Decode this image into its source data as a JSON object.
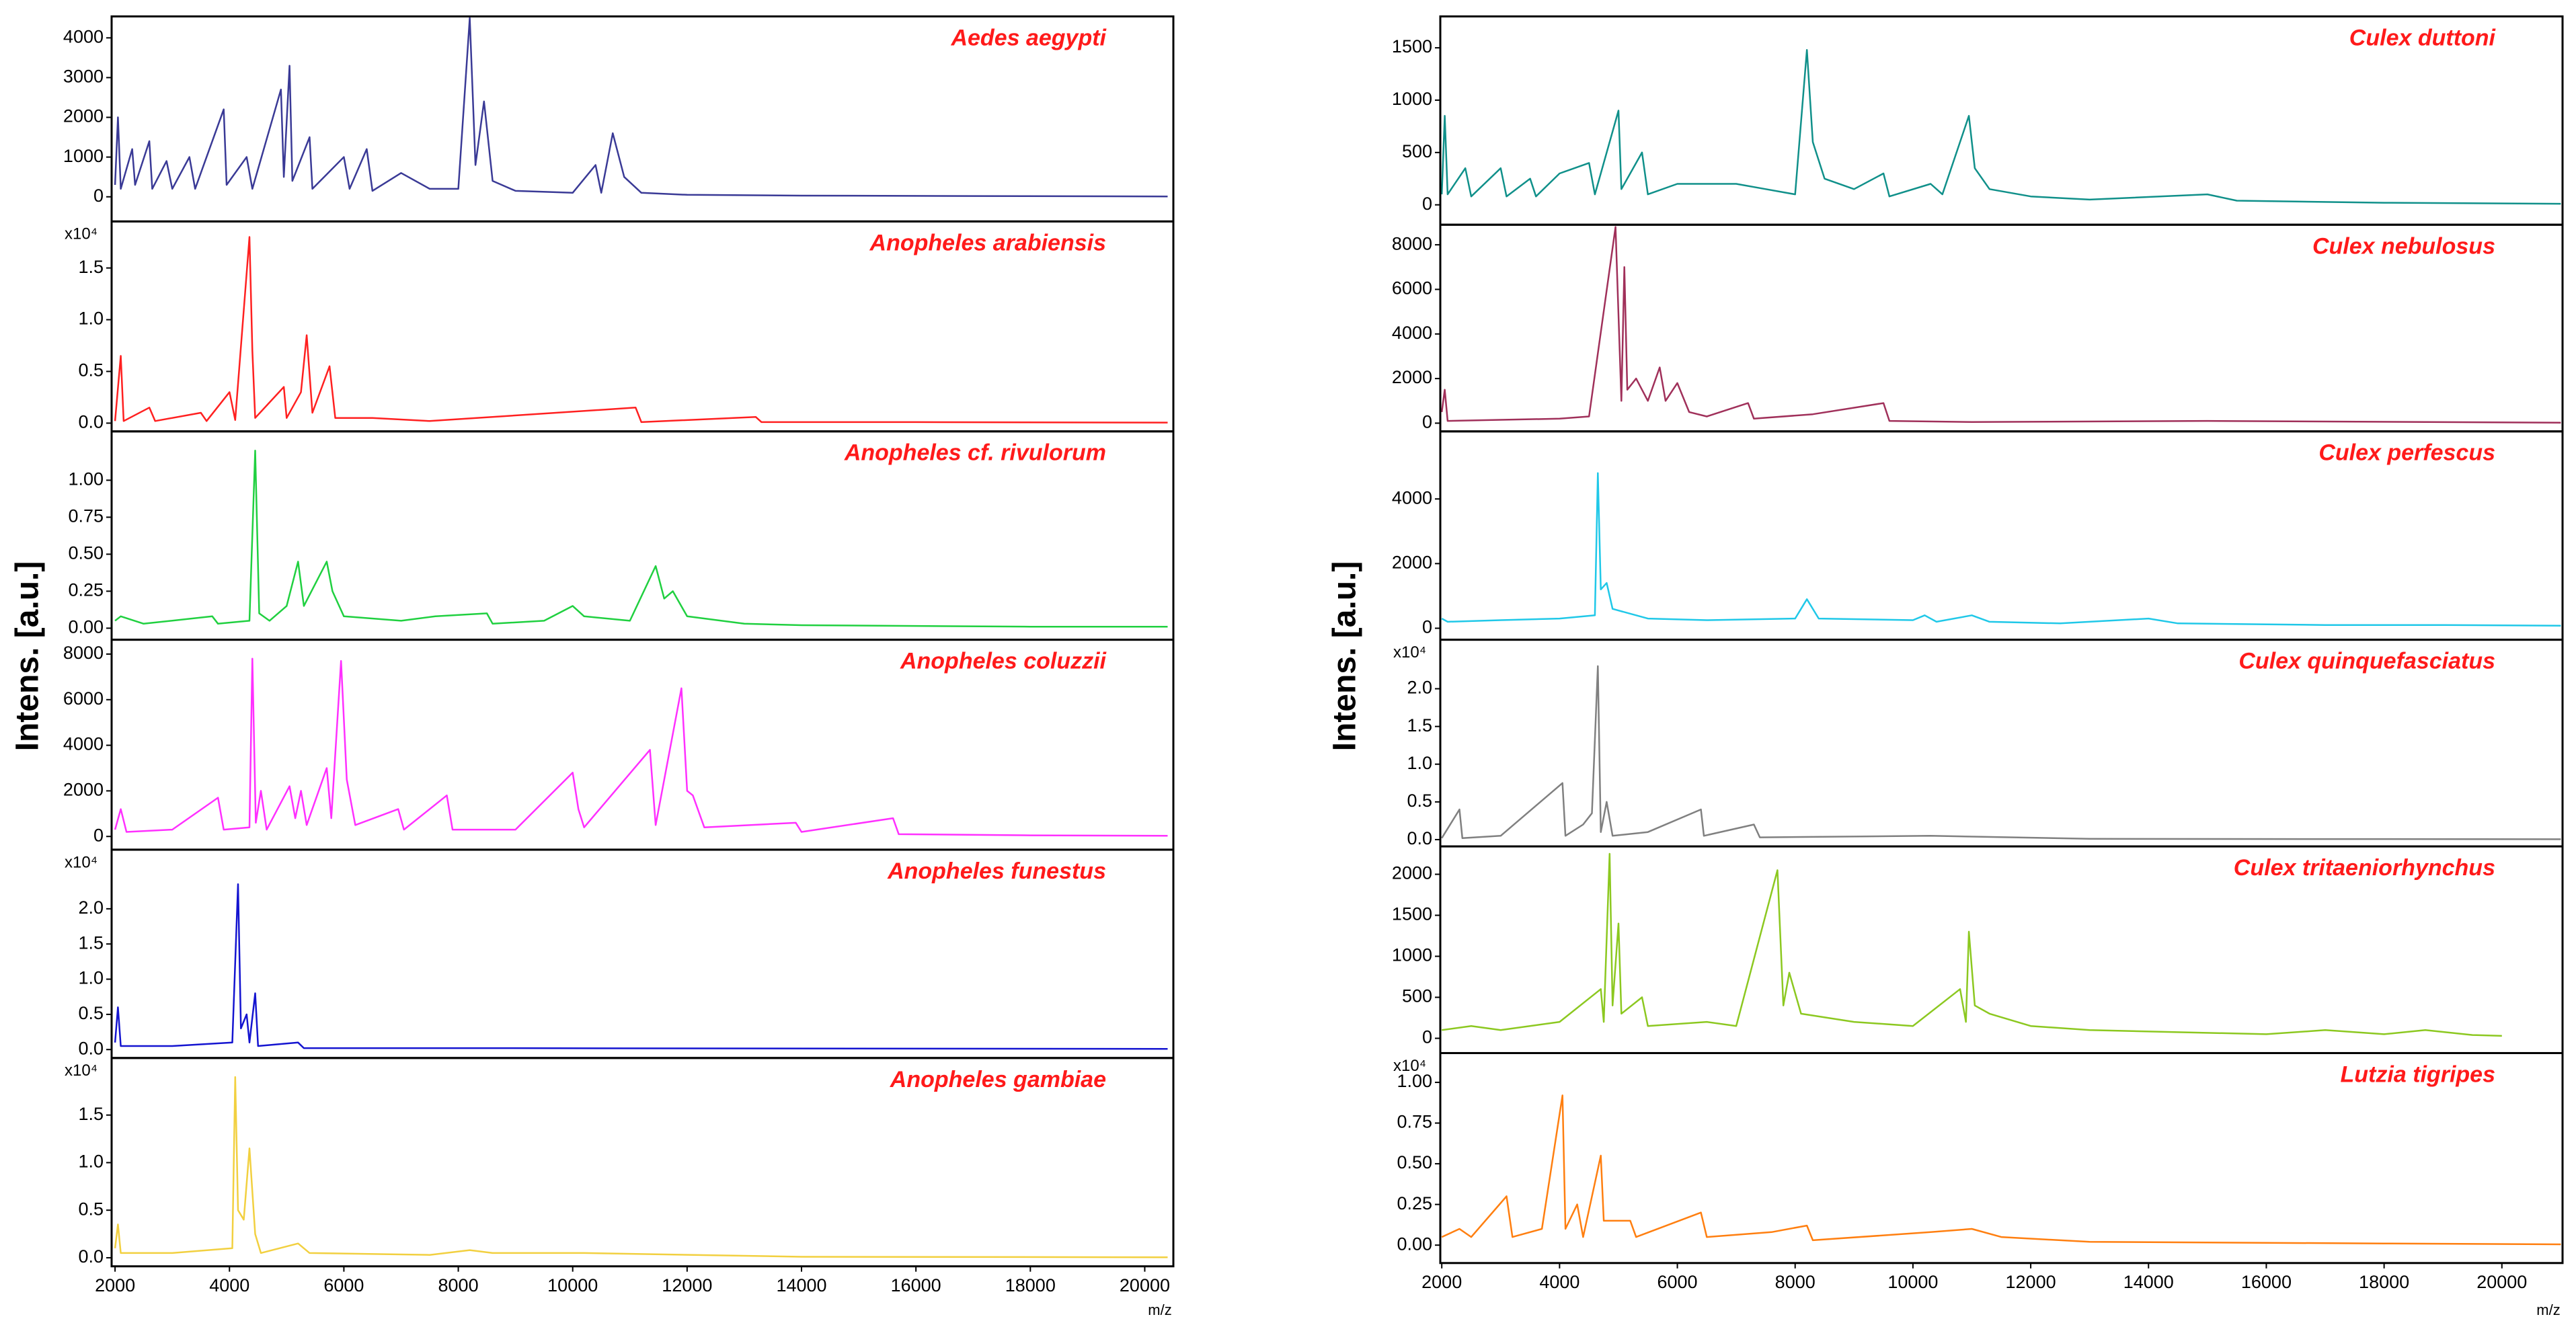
{
  "axis_labels": {
    "y": "Intens. [a.u.]",
    "x": "m/z"
  },
  "chart_data": [
    {
      "type": "line",
      "title": "Aedes aegypti",
      "xlim": [
        1940,
        20500
      ],
      "ylim": [
        -620,
        4540
      ],
      "yticks": [
        0,
        1000,
        2000,
        3000,
        4000
      ],
      "x": [
        2000,
        2050,
        2100,
        2300,
        2350,
        2600,
        2650,
        2900,
        3000,
        3300,
        3400,
        3900,
        3950,
        4300,
        4400,
        4900,
        4950,
        5050,
        5100,
        5400,
        5450,
        6000,
        6100,
        6400,
        6500,
        7000,
        7500,
        8000,
        8200,
        8300,
        8450,
        8600,
        9000,
        10000,
        10400,
        10500,
        10700,
        10900,
        11200,
        12000,
        14000,
        17000,
        20400
      ],
      "series": [
        {
          "color": "#3a3a96",
          "values": [
            300,
            2000,
            200,
            1200,
            300,
            1400,
            200,
            900,
            200,
            1000,
            200,
            2200,
            300,
            1000,
            200,
            2700,
            500,
            3300,
            400,
            1500,
            200,
            1000,
            200,
            1200,
            150,
            600,
            200,
            200,
            4500,
            800,
            2400,
            400,
            150,
            100,
            800,
            100,
            1600,
            500,
            100,
            50,
            30,
            20,
            10
          ]
        }
      ]
    },
    {
      "type": "line",
      "title": "Anopheles arabiensis",
      "y_multiplier": "x10⁴",
      "xlim": [
        1940,
        20500
      ],
      "ylim": [
        -0.08,
        1.95
      ],
      "yticks": [
        {
          "value": 0,
          "label": "0.0"
        },
        0.5,
        {
          "value": 1,
          "label": "1.0"
        },
        1.5
      ],
      "x": [
        2000,
        2100,
        2150,
        2600,
        2700,
        3500,
        3600,
        4000,
        4100,
        4350,
        4400,
        4450,
        4950,
        5000,
        5250,
        5350,
        5450,
        5750,
        5850,
        6500,
        7500,
        11100,
        11200,
        13200,
        13300,
        16000,
        20400
      ],
      "series": [
        {
          "color": "#ff2020",
          "values": [
            0.02,
            0.65,
            0.02,
            0.15,
            0.02,
            0.1,
            0.02,
            0.3,
            0.03,
            1.8,
            0.7,
            0.05,
            0.35,
            0.05,
            0.3,
            0.85,
            0.1,
            0.55,
            0.05,
            0.05,
            0.02,
            0.15,
            0.01,
            0.06,
            0.01,
            0.01,
            0.005
          ]
        }
      ]
    },
    {
      "type": "line",
      "title": "Anopheles cf. rivulorum",
      "xlim": [
        1940,
        20500
      ],
      "ylim": [
        -0.078,
        1.33
      ],
      "yticks": [
        {
          "value": 0,
          "label": "0.00"
        },
        0.25,
        {
          "value": 0.5,
          "label": "0.50"
        },
        0.75,
        {
          "value": 1,
          "label": "1.00"
        }
      ],
      "x": [
        2000,
        2100,
        2500,
        3700,
        3800,
        4350,
        4450,
        4520,
        4700,
        5000,
        5200,
        5300,
        5700,
        5800,
        6000,
        7000,
        7600,
        8500,
        8600,
        9500,
        10000,
        10200,
        11000,
        11450,
        11600,
        11750,
        12000,
        13000,
        14000,
        18000,
        20400
      ],
      "series": [
        {
          "color": "#20d040",
          "values": [
            0.05,
            0.08,
            0.03,
            0.08,
            0.03,
            0.05,
            1.2,
            0.1,
            0.05,
            0.15,
            0.45,
            0.15,
            0.45,
            0.25,
            0.08,
            0.05,
            0.08,
            0.1,
            0.03,
            0.05,
            0.15,
            0.08,
            0.05,
            0.42,
            0.2,
            0.25,
            0.08,
            0.03,
            0.02,
            0.01,
            0.01
          ]
        }
      ]
    },
    {
      "type": "line",
      "title": "Anopheles coluzzii",
      "xlim": [
        1940,
        20500
      ],
      "ylim": [
        -580,
        8630
      ],
      "yticks": [
        0,
        2000,
        4000,
        6000,
        8000
      ],
      "x": [
        2000,
        2100,
        2200,
        3000,
        3800,
        3900,
        4350,
        4400,
        4460,
        4550,
        4650,
        5050,
        5150,
        5250,
        5350,
        5700,
        5780,
        5950,
        6050,
        6200,
        6950,
        7050,
        7800,
        7900,
        9000,
        10000,
        10100,
        10200,
        11350,
        11450,
        11900,
        12000,
        12100,
        12300,
        13900,
        14000,
        15600,
        15700,
        18000,
        20400
      ],
      "series": [
        {
          "color": "#ff30ff",
          "values": [
            300,
            1200,
            200,
            300,
            1700,
            300,
            400,
            7800,
            600,
            2000,
            300,
            2200,
            800,
            2000,
            500,
            3000,
            800,
            7700,
            2500,
            500,
            1200,
            300,
            1800,
            300,
            300,
            2800,
            1200,
            400,
            3800,
            500,
            6500,
            2000,
            1800,
            400,
            600,
            200,
            800,
            100,
            50,
            30
          ]
        }
      ]
    },
    {
      "type": "line",
      "title": "Anopheles funestus",
      "y_multiplier": "x10⁴",
      "xlim": [
        1940,
        20500
      ],
      "ylim": [
        -0.12,
        2.84
      ],
      "yticks": [
        {
          "value": 0,
          "label": "0.0"
        },
        0.5,
        {
          "value": 1,
          "label": "1.0"
        },
        1.5,
        {
          "value": 2,
          "label": "2.0"
        }
      ],
      "x": [
        2000,
        2050,
        2100,
        3000,
        4050,
        4150,
        4200,
        4300,
        4350,
        4450,
        4500,
        5200,
        5300,
        8000,
        20400
      ],
      "series": [
        {
          "color": "#1414d0",
          "values": [
            0.1,
            0.6,
            0.05,
            0.05,
            0.1,
            2.35,
            0.3,
            0.5,
            0.1,
            0.8,
            0.05,
            0.1,
            0.02,
            0.02,
            0.01
          ]
        }
      ]
    },
    {
      "type": "line",
      "title": "Anopheles gambiae",
      "y_multiplier": "x10⁴",
      "xlim": [
        1940,
        20500
      ],
      "ylim": [
        -0.09,
        2.1
      ],
      "yticks": [
        {
          "value": 0,
          "label": "0.0"
        },
        0.5,
        {
          "value": 1,
          "label": "1.0"
        },
        1.5
      ],
      "xticks": [
        2000,
        4000,
        6000,
        8000,
        10000,
        12000,
        14000,
        16000,
        18000,
        20000
      ],
      "x": [
        2000,
        2050,
        2100,
        3000,
        4050,
        4100,
        4150,
        4250,
        4350,
        4450,
        4550,
        5200,
        5400,
        7500,
        8200,
        8600,
        10200,
        14000,
        20400
      ],
      "series": [
        {
          "color": "#f2d040",
          "values": [
            0.1,
            0.35,
            0.05,
            0.05,
            0.1,
            1.9,
            0.5,
            0.4,
            1.15,
            0.25,
            0.05,
            0.15,
            0.05,
            0.03,
            0.08,
            0.05,
            0.05,
            0.01,
            0.005
          ]
        }
      ]
    },
    {
      "type": "line",
      "title": "Culex duttoni",
      "xlim": [
        1975,
        21030
      ],
      "ylim": [
        -190,
        1800
      ],
      "yticks": [
        0,
        500,
        1000,
        1500
      ],
      "x": [
        2000,
        2050,
        2100,
        2400,
        2500,
        3000,
        3100,
        3500,
        3600,
        4000,
        4500,
        4600,
        5000,
        5050,
        5400,
        5500,
        6000,
        7000,
        7500,
        8000,
        8200,
        8300,
        8500,
        9000,
        9500,
        9600,
        10300,
        10500,
        10950,
        11050,
        11300,
        12000,
        13000,
        15000,
        15500,
        18000,
        21000
      ],
      "series": [
        {
          "color": "#10908a",
          "values": [
            100,
            850,
            100,
            350,
            80,
            350,
            80,
            250,
            80,
            300,
            400,
            100,
            900,
            150,
            500,
            100,
            200,
            200,
            150,
            100,
            1480,
            600,
            250,
            150,
            300,
            80,
            200,
            100,
            850,
            350,
            150,
            80,
            50,
            100,
            40,
            20,
            10
          ]
        }
      ]
    },
    {
      "type": "line",
      "title": "Culex nebulosus",
      "xlim": [
        1975,
        21030
      ],
      "ylim": [
        -370,
        8900
      ],
      "yticks": [
        0,
        2000,
        4000,
        6000,
        8000
      ],
      "x": [
        2000,
        2050,
        2100,
        3000,
        4000,
        4500,
        4950,
        5050,
        5100,
        5150,
        5300,
        5500,
        5700,
        5800,
        6000,
        6200,
        6500,
        7200,
        7300,
        8300,
        9500,
        9600,
        11000,
        15000,
        21000
      ],
      "series": [
        {
          "color": "#a0305a",
          "values": [
            500,
            1500,
            100,
            150,
            200,
            300,
            8800,
            1000,
            7000,
            1500,
            2000,
            1000,
            2500,
            1000,
            1800,
            500,
            300,
            900,
            200,
            400,
            900,
            100,
            50,
            100,
            20
          ]
        }
      ]
    },
    {
      "type": "line",
      "title": "Culex perfescus",
      "xlim": [
        1975,
        21030
      ],
      "ylim": [
        -355,
        6090
      ],
      "yticks": [
        0,
        2000,
        4000
      ],
      "x": [
        2000,
        2100,
        3000,
        4000,
        4600,
        4650,
        4700,
        4800,
        4900,
        5500,
        6500,
        8000,
        8200,
        8400,
        10000,
        10200,
        10400,
        11000,
        11300,
        12500,
        14000,
        14500,
        17000,
        19000,
        21000
      ],
      "series": [
        {
          "color": "#20c8e8",
          "values": [
            300,
            200,
            250,
            300,
            400,
            4800,
            1200,
            1400,
            600,
            300,
            250,
            300,
            900,
            300,
            250,
            400,
            200,
            400,
            200,
            150,
            300,
            150,
            100,
            100,
            80
          ]
        }
      ]
    },
    {
      "type": "line",
      "title": "Culex quinquefasciatus",
      "y_multiplier": "x10⁴",
      "xlim": [
        1975,
        21030
      ],
      "ylim": [
        -0.09,
        2.65
      ],
      "yticks": [
        {
          "value": 0,
          "label": "0.0"
        },
        0.5,
        {
          "value": 1,
          "label": "1.0"
        },
        1.5,
        {
          "value": 2,
          "label": "2.0"
        }
      ],
      "x": [
        2000,
        2300,
        2350,
        3000,
        4050,
        4100,
        4400,
        4550,
        4650,
        4700,
        4800,
        4900,
        5500,
        6400,
        6450,
        7300,
        7400,
        10300,
        13000,
        21000
      ],
      "series": [
        {
          "color": "#808080",
          "values": [
            0.02,
            0.4,
            0.02,
            0.05,
            0.75,
            0.05,
            0.2,
            0.35,
            2.3,
            0.1,
            0.5,
            0.05,
            0.1,
            0.4,
            0.05,
            0.2,
            0.03,
            0.05,
            0.01,
            0.005
          ]
        }
      ]
    },
    {
      "type": "line",
      "title": "Culex tritaeniorhynchus",
      "xlim": [
        1975,
        21030
      ],
      "ylim": [
        -180,
        2340
      ],
      "yticks": [
        0,
        500,
        1000,
        1500,
        2000
      ],
      "x": [
        2000,
        2500,
        3000,
        4000,
        4700,
        4750,
        4850,
        4900,
        5000,
        5050,
        5400,
        5500,
        6500,
        7000,
        7700,
        7800,
        7900,
        8100,
        9000,
        10000,
        10800,
        10900,
        10950,
        11050,
        11300,
        12000,
        13000,
        16000,
        17000,
        18000,
        18700,
        19500,
        20000
      ],
      "series": [
        {
          "color": "#8cc820",
          "values": [
            100,
            150,
            100,
            200,
            600,
            200,
            2250,
            400,
            1400,
            300,
            500,
            150,
            200,
            150,
            2050,
            400,
            800,
            300,
            200,
            150,
            600,
            200,
            1300,
            400,
            300,
            150,
            100,
            50,
            100,
            50,
            100,
            40,
            30
          ]
        }
      ]
    },
    {
      "type": "line",
      "title": "Lutzia tigripes",
      "y_multiplier": "x10⁴",
      "xlim": [
        1975,
        21030
      ],
      "ylim": [
        -0.11,
        1.18
      ],
      "yticks": [
        {
          "value": 0,
          "label": "0.00"
        },
        0.25,
        {
          "value": 0.5,
          "label": "0.50"
        },
        0.75,
        {
          "value": 1,
          "label": "1.00"
        }
      ],
      "xticks": [
        2000,
        4000,
        6000,
        8000,
        10000,
        12000,
        14000,
        16000,
        18000,
        20000
      ],
      "x": [
        2000,
        2300,
        2500,
        3100,
        3200,
        3700,
        4050,
        4100,
        4300,
        4400,
        4700,
        4750,
        5200,
        5300,
        6400,
        6500,
        7600,
        8200,
        8300,
        10300,
        11000,
        11500,
        13000,
        18000,
        21000
      ],
      "series": [
        {
          "color": "#ff7f10",
          "values": [
            0.05,
            0.1,
            0.05,
            0.3,
            0.05,
            0.1,
            0.92,
            0.1,
            0.25,
            0.05,
            0.55,
            0.15,
            0.15,
            0.05,
            0.2,
            0.05,
            0.08,
            0.12,
            0.03,
            0.08,
            0.1,
            0.05,
            0.02,
            0.01,
            0.005
          ]
        }
      ]
    }
  ]
}
